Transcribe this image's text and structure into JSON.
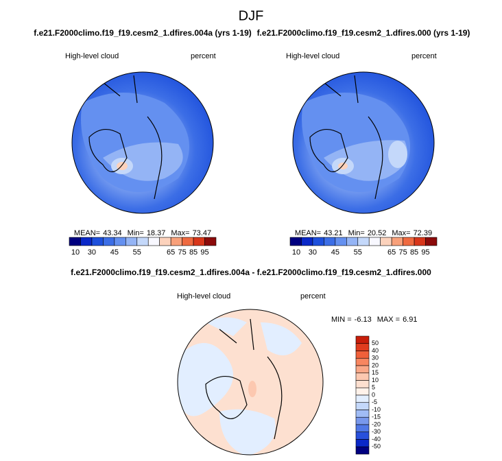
{
  "title": "DJF",
  "panels": [
    {
      "case": "f.e21.F2000climo.f19_f19.cesm2_1.dfires.004a (yrs 1-19)",
      "variable": "High-level cloud",
      "units": "percent",
      "stats": [
        {
          "label": "MEAN=",
          "value": 43.34
        },
        {
          "label": "Min=",
          "value": 18.37
        },
        {
          "label": "Max=",
          "value": 73.47
        }
      ],
      "colorbar": {
        "colors": [
          "#000080",
          "#0a28c8",
          "#1e50dc",
          "#3c6ee6",
          "#6490f0",
          "#94b4f5",
          "#c4d8fa",
          "#f8f8ff",
          "#fcd2bc",
          "#f8a07a",
          "#ef6a40",
          "#d8361a",
          "#8b0a0a"
        ],
        "labels": [
          10,
          30,
          45,
          55,
          65,
          75,
          85,
          95
        ]
      }
    },
    {
      "case": "f.e21.F2000climo.f19_f19.cesm2_1.dfires.000 (yrs 1-19)",
      "variable": "High-level cloud",
      "units": "percent",
      "stats": [
        {
          "label": "MEAN=",
          "value": 43.21
        },
        {
          "label": "Min=",
          "value": 20.52
        },
        {
          "label": "Max=",
          "value": 72.39
        }
      ],
      "colorbar": {
        "colors": [
          "#000080",
          "#0a28c8",
          "#1e50dc",
          "#3c6ee6",
          "#6490f0",
          "#94b4f5",
          "#c4d8fa",
          "#f8f8ff",
          "#fcd2bc",
          "#f8a07a",
          "#ef6a40",
          "#d8361a",
          "#8b0a0a"
        ],
        "labels": [
          10,
          30,
          45,
          55,
          65,
          75,
          85,
          95
        ]
      }
    }
  ],
  "difference": {
    "title": "f.e21.F2000climo.f19_f19.cesm2_1.dfires.004a - f.e21.F2000climo.f19_f19.cesm2_1.dfires.000",
    "variable": "High-level cloud",
    "units": "percent",
    "stats": [
      {
        "label": "MIN =",
        "value": -6.13
      },
      {
        "label": "MAX =",
        "value": 6.91
      }
    ],
    "colorbar": {
      "colors": [
        "#c81e0a",
        "#e03c1e",
        "#f0603a",
        "#f88660",
        "#faa888",
        "#fcc8b0",
        "#fde0d0",
        "#fff2ea",
        "#e2eeff",
        "#c4d8fa",
        "#a0bcf5",
        "#7898ec",
        "#5078e6",
        "#2850dc",
        "#0a28c8",
        "#000080"
      ],
      "labels": [
        50,
        40,
        30,
        20,
        15,
        10,
        5,
        0,
        -5,
        -10,
        -15,
        -20,
        -30,
        -40,
        -50
      ]
    }
  }
}
